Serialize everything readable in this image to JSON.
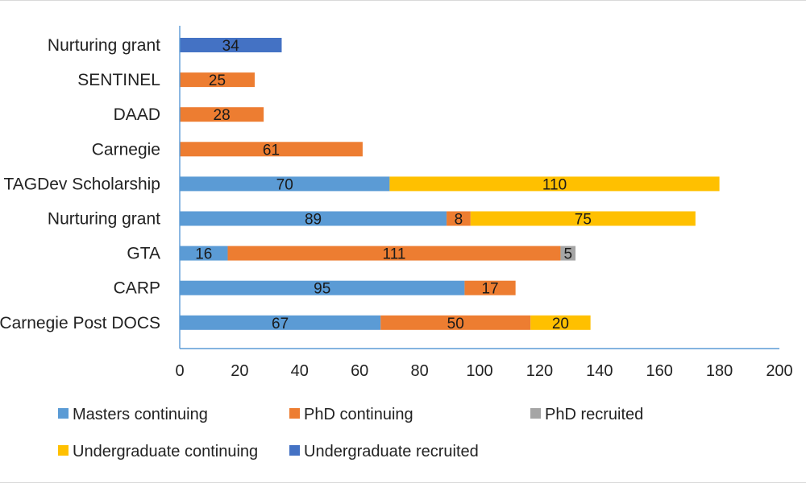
{
  "chart_data": {
    "type": "bar",
    "orientation": "horizontal",
    "stacked": true,
    "categories": [
      "Nurturing grant",
      "SENTINEL",
      "DAAD",
      "Carnegie",
      "TAGDev Scholarship",
      "Nurturing grant",
      "GTA",
      "CARP",
      "Carnegie Post DOCS"
    ],
    "series": [
      {
        "name": "Masters continuing",
        "color": "#5b9bd5",
        "values": [
          null,
          null,
          null,
          null,
          70,
          89,
          16,
          95,
          67
        ]
      },
      {
        "name": "PhD continuing",
        "color": "#ed7d31",
        "values": [
          null,
          25,
          28,
          61,
          null,
          8,
          111,
          17,
          50
        ]
      },
      {
        "name": "PhD recruited",
        "color": "#a5a5a5",
        "values": [
          null,
          null,
          null,
          null,
          null,
          null,
          5,
          null,
          null
        ]
      },
      {
        "name": "Undergraduate continuing",
        "color": "#ffc000",
        "values": [
          null,
          null,
          null,
          null,
          110,
          75,
          null,
          null,
          20
        ]
      },
      {
        "name": "Undergraduate recruited",
        "color": "#4472c4",
        "values": [
          34,
          null,
          null,
          null,
          null,
          null,
          null,
          null,
          null
        ]
      }
    ],
    "xlim": [
      0,
      200
    ],
    "xticks": [
      "0",
      "20",
      "40",
      "60",
      "80",
      "100",
      "120",
      "140",
      "160",
      "180",
      "200"
    ],
    "title": "",
    "xlabel": "",
    "ylabel": "",
    "grid": false,
    "legend_position": "bottom"
  }
}
